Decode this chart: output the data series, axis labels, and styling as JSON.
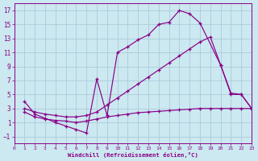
{
  "background_color": "#cce8f0",
  "grid_color": "#aaccda",
  "line_color": "#880088",
  "xlabel": "Windchill (Refroidissement éolien,°C)",
  "xlim": [
    0,
    23
  ],
  "ylim": [
    -2,
    18
  ],
  "xticks": [
    0,
    1,
    2,
    3,
    4,
    5,
    6,
    7,
    8,
    9,
    10,
    11,
    12,
    13,
    14,
    15,
    16,
    17,
    18,
    19,
    20,
    21,
    22,
    23
  ],
  "yticks": [
    -1,
    1,
    3,
    5,
    7,
    9,
    11,
    13,
    15,
    17
  ],
  "curve_upper_x": [
    1,
    2,
    3,
    4,
    5,
    6,
    7,
    8,
    9,
    10,
    11,
    12,
    13,
    14,
    15,
    16,
    17,
    18,
    20,
    21,
    22,
    23
  ],
  "curve_upper_y": [
    4.0,
    2.2,
    1.6,
    1.0,
    0.5,
    0.0,
    -0.5,
    7.2,
    2.0,
    11.0,
    11.8,
    12.8,
    13.5,
    15.0,
    15.3,
    17.0,
    16.5,
    15.2,
    9.2,
    5.2,
    5.0,
    3.0
  ],
  "curve_mid_x": [
    1,
    2,
    3,
    4,
    5,
    6,
    7,
    8,
    9,
    10,
    11,
    12,
    13,
    14,
    15,
    16,
    17,
    18,
    19,
    20,
    21,
    22,
    23
  ],
  "curve_mid_y": [
    3.0,
    2.5,
    2.2,
    2.0,
    1.8,
    1.8,
    2.0,
    2.5,
    3.5,
    4.5,
    5.5,
    6.5,
    7.5,
    8.5,
    9.5,
    10.5,
    11.5,
    12.5,
    13.2,
    9.2,
    5.0,
    5.0,
    3.0
  ],
  "curve_low_x": [
    1,
    2,
    3,
    4,
    5,
    6,
    7,
    8,
    9,
    10,
    11,
    12,
    13,
    14,
    15,
    16,
    17,
    18,
    19,
    20,
    21,
    22,
    23
  ],
  "curve_low_y": [
    2.5,
    1.8,
    1.5,
    1.3,
    1.2,
    1.0,
    1.2,
    1.5,
    1.8,
    2.0,
    2.2,
    2.4,
    2.5,
    2.6,
    2.7,
    2.8,
    2.9,
    3.0,
    3.0,
    3.0,
    3.0,
    3.0,
    3.0
  ]
}
